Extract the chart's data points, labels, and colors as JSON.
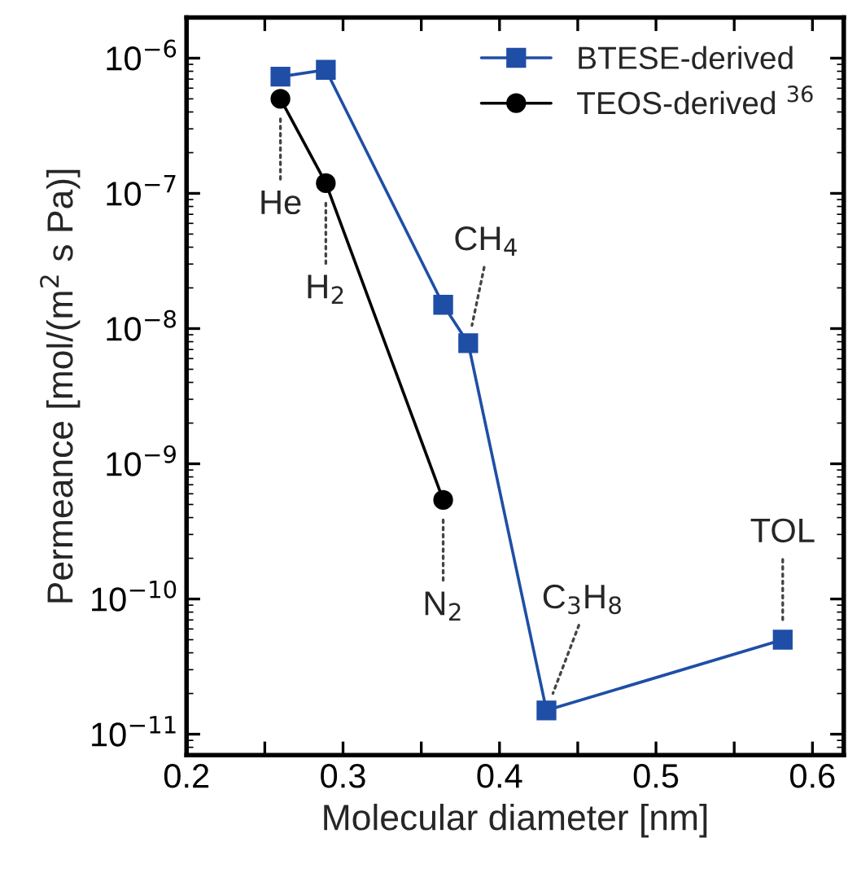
{
  "chart_data": {
    "type": "line",
    "xlabel": "Molecular diameter [nm]",
    "ylabel": "Permeance [mol/(m$^{2}$ s Pa)]",
    "log": "y",
    "legend": "top right",
    "grid": false,
    "xlim": [
      0.2,
      0.62
    ],
    "ylim": [
      7e-12,
      2e-06
    ],
    "xticks": [
      0.2,
      {
        "value": 0.25,
        "label": null
      },
      0.3,
      {
        "value": 0.35,
        "label": null
      },
      0.4,
      {
        "value": 0.45,
        "label": null
      },
      0.5,
      {
        "value": 0.55,
        "label": null
      },
      0.6
    ],
    "yticks": [
      {
        "value": 1e-11,
        "label": "10$^{−11}$"
      },
      {
        "value": 1e-10,
        "label": "10$^{−10}$"
      },
      {
        "value": 1e-09,
        "label": "10$^{−9}$"
      },
      {
        "value": 1e-08,
        "label": "10$^{−8}$"
      },
      {
        "value": 1e-07,
        "label": "10$^{−7}$"
      },
      {
        "value": 1e-06,
        "label": "10$^{−6}$"
      }
    ],
    "series": [
      {
        "name": "BTESE-derived",
        "color": "#1f4ea6",
        "marker": "square",
        "x": [
          0.26,
          0.289,
          0.364,
          0.38,
          0.43,
          0.581
        ],
        "values": [
          7.3e-07,
          8.2e-07,
          1.5e-08,
          7.8e-09,
          1.5e-11,
          5e-11
        ]
      },
      {
        "name": "TEOS-derived $^{36}$",
        "color": "#000000",
        "marker": "circle",
        "x": [
          0.26,
          0.289,
          0.364
        ],
        "values": [
          5e-07,
          1.19e-07,
          5.4e-10
        ]
      }
    ],
    "annotations": [
      {
        "text": "He",
        "x": 0.26,
        "y": 5e-07
      },
      {
        "text": "H$_{2}$",
        "x": 0.289,
        "y": 1.19e-07
      },
      {
        "text": "CH$_{4}$",
        "x": 0.38,
        "y": 7.8e-09
      },
      {
        "text": "N$_{2}$",
        "x": 0.364,
        "y": 5.4e-10
      },
      {
        "text": "C$_{3}$H$_{8}$",
        "x": 0.43,
        "y": 1.5e-11
      },
      {
        "text": "TOL",
        "x": 0.581,
        "y": 5e-11
      }
    ]
  }
}
